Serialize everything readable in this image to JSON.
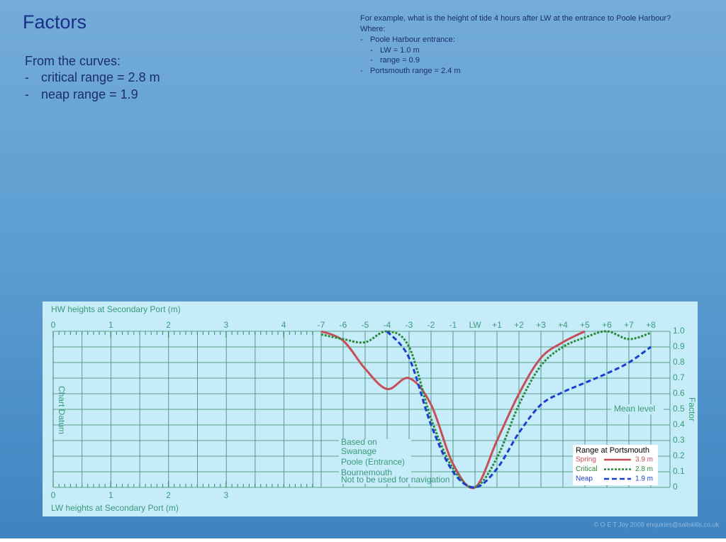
{
  "slide": {
    "title": "Factors",
    "notes": [
      "From the curves:",
      "critical range = 2.8 m",
      "neap range = 1.9"
    ],
    "example": [
      "For example, what is the height of tide 4 hours after LW at the entrance to Poole Harbour?",
      "Where:",
      "Poole Harbour entrance:",
      "LW = 1.0 m",
      "range = 0.9",
      "Portsmouth range  = 2.4 m"
    ],
    "copyright": "© O E T Joy 2008 enquiries@sailskills.co.uk"
  },
  "chart_data": {
    "type": "line",
    "hw_axis": {
      "title": "HW heights at Secondary Port (m)",
      "lim": [
        0,
        4
      ],
      "ticks": [
        0,
        1,
        2,
        3,
        4
      ]
    },
    "lw_axis": {
      "title": "LW heights at Secondary Port (m)",
      "lim": [
        0,
        3
      ],
      "ticks": [
        0,
        1,
        2,
        3
      ]
    },
    "y_label_left": "Chart Datum",
    "y_label": "Factor",
    "mean_level": "Mean level",
    "ports": [
      "Based on",
      "Swanage",
      "Poole (Entrance)",
      "Bournemouth",
      "Not to be used for navigation"
    ],
    "legend_title": "Range at Portsmouth",
    "x": [
      -7,
      -6,
      -5,
      -4,
      -3,
      -2,
      -1,
      0,
      1,
      2,
      3,
      4,
      5,
      6,
      7,
      8
    ],
    "xlim": [
      -7,
      8
    ],
    "xticks": [
      -7,
      -6,
      -5,
      -4,
      -3,
      -2,
      -1,
      {
        "value": 0,
        "label": "LW"
      },
      {
        "value": 1,
        "label": "+1"
      },
      {
        "value": 2,
        "label": "+2"
      },
      {
        "value": 3,
        "label": "+3"
      },
      {
        "value": 4,
        "label": "+4"
      },
      {
        "value": 5,
        "label": "+5"
      },
      {
        "value": 6,
        "label": "+6"
      },
      {
        "value": 7,
        "label": "+7"
      },
      {
        "value": 8,
        "label": "+8"
      }
    ],
    "ylim": [
      0,
      1
    ],
    "yticks": [
      0,
      0.1,
      0.2,
      0.3,
      0.4,
      0.5,
      0.6,
      0.7,
      0.8,
      0.9,
      {
        "value": 1,
        "label": "1.0"
      }
    ],
    "grid": true,
    "series": [
      {
        "name": "Spring",
        "range": "3.9 m",
        "color": "#c4505a",
        "style": "solid",
        "values": [
          1.0,
          0.94,
          0.76,
          0.63,
          0.7,
          0.53,
          0.15,
          0,
          0.3,
          0.6,
          0.83,
          0.93,
          1.0,
          null,
          null,
          null
        ]
      },
      {
        "name": "Critical",
        "range": "2.8 m",
        "color": "#2a8a3a",
        "style": "dotted",
        "values": [
          0.98,
          0.95,
          0.93,
          1.0,
          0.9,
          0.44,
          0.12,
          0,
          0.19,
          0.53,
          0.78,
          0.9,
          0.96,
          1.0,
          0.95,
          0.99
        ]
      },
      {
        "name": "Neap",
        "range": "1.9 m",
        "color": "#1a3fd0",
        "style": "dashed",
        "values": [
          null,
          null,
          null,
          1.0,
          0.83,
          0.4,
          0.1,
          0,
          0.12,
          0.35,
          0.53,
          0.61,
          0.67,
          0.73,
          0.8,
          0.9
        ]
      }
    ]
  }
}
